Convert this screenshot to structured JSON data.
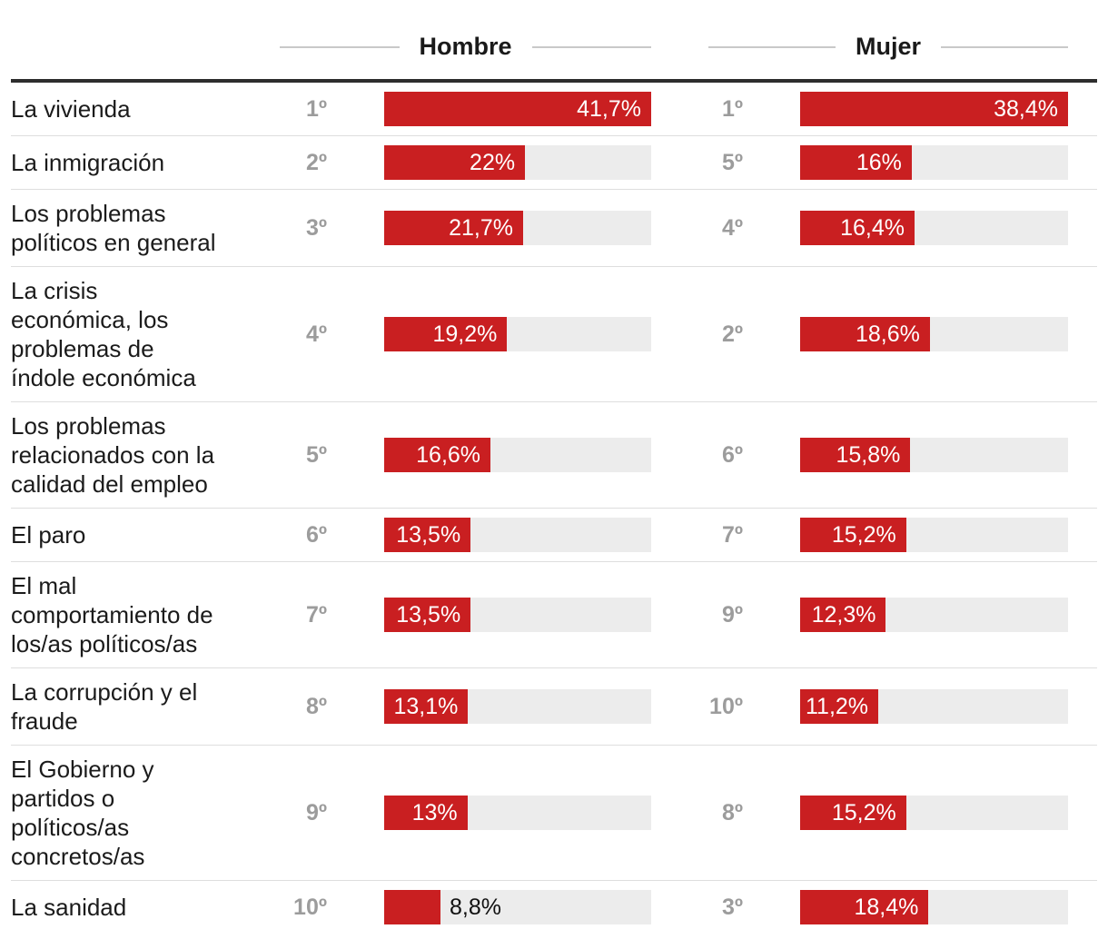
{
  "colors": {
    "bar": "#c91f21",
    "track": "#ececec",
    "rank_text": "#9c9c9c",
    "value_text_inside": "#ffffff",
    "value_text_outside": "#111111",
    "top_rule": "#2d2d2d",
    "row_divider": "#dedede",
    "header_rule": "#c9c9c9"
  },
  "chart_data": {
    "type": "bar",
    "title": "",
    "legend_position": "column headers",
    "grid": false,
    "value_format": "percent with comma decimal",
    "note_scaling": "each column's bar track is normalized to that column's maximum value",
    "columns": [
      {
        "name": "Hombre",
        "max": 41.7
      },
      {
        "name": "Mujer",
        "max": 38.4
      }
    ],
    "rows": [
      {
        "category": "La vivienda",
        "cells": [
          {
            "rank": "1º",
            "value": 41.7,
            "label": "41,7%",
            "inside": true
          },
          {
            "rank": "1º",
            "value": 38.4,
            "label": "38,4%",
            "inside": true
          }
        ]
      },
      {
        "category": "La inmigración",
        "cells": [
          {
            "rank": "2º",
            "value": 22.0,
            "label": "22%",
            "inside": true
          },
          {
            "rank": "5º",
            "value": 16.0,
            "label": "16%",
            "inside": true
          }
        ]
      },
      {
        "category": "Los problemas\npolíticos en general",
        "cells": [
          {
            "rank": "3º",
            "value": 21.7,
            "label": "21,7%",
            "inside": true
          },
          {
            "rank": "4º",
            "value": 16.4,
            "label": "16,4%",
            "inside": true
          }
        ]
      },
      {
        "category": "La crisis\neconómica, los\nproblemas de\níndole económica",
        "cells": [
          {
            "rank": "4º",
            "value": 19.2,
            "label": "19,2%",
            "inside": true
          },
          {
            "rank": "2º",
            "value": 18.6,
            "label": "18,6%",
            "inside": true
          }
        ]
      },
      {
        "category": "Los problemas\nrelacionados con la\ncalidad del empleo",
        "cells": [
          {
            "rank": "5º",
            "value": 16.6,
            "label": "16,6%",
            "inside": true
          },
          {
            "rank": "6º",
            "value": 15.8,
            "label": "15,8%",
            "inside": true
          }
        ]
      },
      {
        "category": "El paro",
        "cells": [
          {
            "rank": "6º",
            "value": 13.5,
            "label": "13,5%",
            "inside": true
          },
          {
            "rank": "7º",
            "value": 15.2,
            "label": "15,2%",
            "inside": true
          }
        ]
      },
      {
        "category": "El mal\ncomportamiento de\nlos/as políticos/as",
        "cells": [
          {
            "rank": "7º",
            "value": 13.5,
            "label": "13,5%",
            "inside": true
          },
          {
            "rank": "9º",
            "value": 12.3,
            "label": "12,3%",
            "inside": true
          }
        ]
      },
      {
        "category": "La corrupción y el\nfraude",
        "cells": [
          {
            "rank": "8º",
            "value": 13.1,
            "label": "13,1%",
            "inside": true
          },
          {
            "rank": "10º",
            "value": 11.2,
            "label": "11,2%",
            "inside": true
          }
        ]
      },
      {
        "category": "El Gobierno y\npartidos o\npolíticos/as\nconcretos/as",
        "cells": [
          {
            "rank": "9º",
            "value": 13.0,
            "label": "13%",
            "inside": true
          },
          {
            "rank": "8º",
            "value": 15.2,
            "label": "15,2%",
            "inside": true
          }
        ]
      },
      {
        "category": "La sanidad",
        "cells": [
          {
            "rank": "10º",
            "value": 8.8,
            "label": "8,8%",
            "inside": false
          },
          {
            "rank": "3º",
            "value": 18.4,
            "label": "18,4%",
            "inside": true
          }
        ]
      }
    ]
  }
}
